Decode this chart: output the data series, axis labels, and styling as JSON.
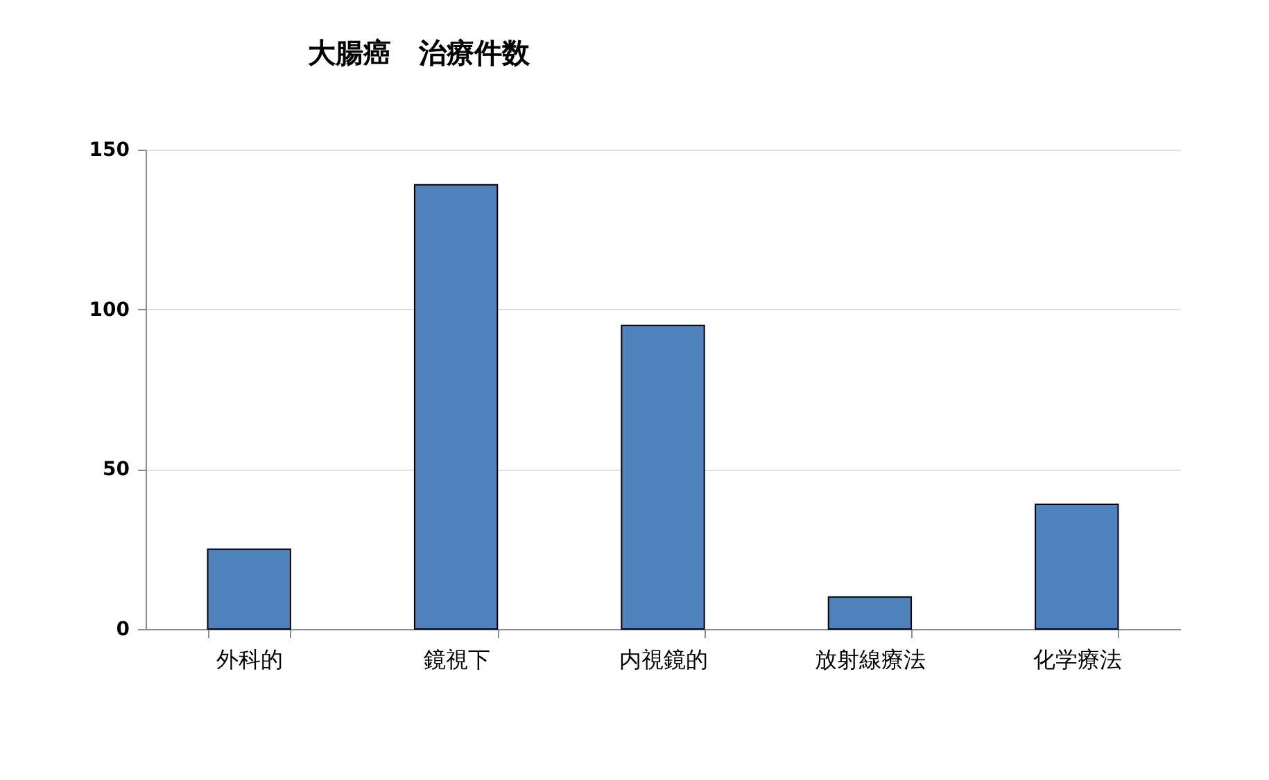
{
  "chart_data": {
    "type": "bar",
    "title": "大腸癌　治療件数",
    "categories": [
      "外科的",
      "鏡視下",
      "内視鏡的",
      "放射線療法",
      "化学療法"
    ],
    "values": [
      25,
      139,
      95,
      10,
      39
    ],
    "color": "#4f81bd",
    "ylim": [
      0,
      150
    ],
    "yticks": [
      0,
      50,
      100,
      150
    ],
    "grid": "y"
  }
}
